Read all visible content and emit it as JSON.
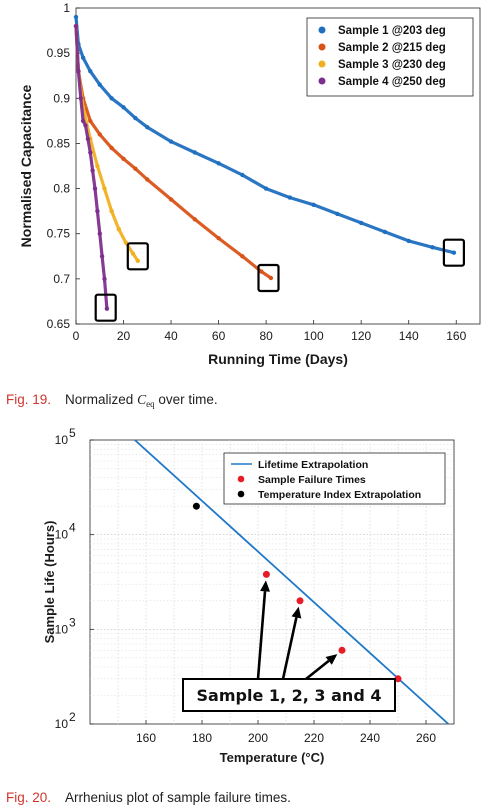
{
  "figure1": {
    "caption_label": "Fig. 19.",
    "caption_pre": "Normalized ",
    "caption_sym": "C",
    "caption_sub": "eq",
    "caption_post": " over time."
  },
  "figure2": {
    "caption_label": "Fig. 20.",
    "caption_text": "Arrhenius plot of sample failure times."
  },
  "chart_data": [
    {
      "type": "scatter",
      "xlabel": "Running Time (Days)",
      "ylabel": "Normalised Capacitance",
      "xlim": [
        0,
        170
      ],
      "ylim": [
        0.65,
        1
      ],
      "xticks": [
        0,
        20,
        40,
        60,
        80,
        100,
        120,
        140,
        160
      ],
      "yticks": [
        0.65,
        0.7,
        0.75,
        0.8,
        0.85,
        0.9,
        0.95,
        1
      ],
      "legend_position": "top-right",
      "grid": false,
      "colors": [
        "#1f6fc0",
        "#d95319",
        "#f0b020",
        "#7e2f8e"
      ],
      "series": [
        {
          "name": "Sample 1 @203 deg",
          "x": [
            0,
            1,
            3,
            6,
            10,
            15,
            20,
            25,
            30,
            40,
            50,
            60,
            70,
            80,
            90,
            100,
            110,
            120,
            130,
            140,
            150,
            159
          ],
          "values": [
            0.99,
            0.96,
            0.945,
            0.93,
            0.915,
            0.9,
            0.89,
            0.878,
            0.868,
            0.852,
            0.84,
            0.828,
            0.815,
            0.8,
            0.79,
            0.782,
            0.772,
            0.762,
            0.752,
            0.742,
            0.735,
            0.729
          ]
        },
        {
          "name": "Sample 2 @215 deg",
          "x": [
            0,
            1,
            3,
            6,
            10,
            15,
            20,
            25,
            30,
            40,
            50,
            60,
            70,
            78,
            82
          ],
          "values": [
            0.98,
            0.93,
            0.9,
            0.875,
            0.86,
            0.845,
            0.833,
            0.822,
            0.81,
            0.788,
            0.766,
            0.745,
            0.725,
            0.708,
            0.701
          ]
        },
        {
          "name": "Sample 3 @230 deg",
          "x": [
            0,
            1,
            3,
            6,
            9,
            12,
            15,
            18,
            21,
            24,
            26
          ],
          "values": [
            0.98,
            0.93,
            0.89,
            0.855,
            0.825,
            0.8,
            0.775,
            0.755,
            0.74,
            0.728,
            0.72
          ]
        },
        {
          "name": "Sample 4 @250 deg",
          "x": [
            0,
            1,
            2,
            3,
            4,
            5,
            6,
            7,
            8,
            9,
            10,
            11,
            12,
            13
          ],
          "values": [
            0.98,
            0.93,
            0.9,
            0.875,
            0.87,
            0.855,
            0.84,
            0.82,
            0.8,
            0.775,
            0.75,
            0.725,
            0.7,
            0.667
          ]
        }
      ],
      "failure_boxes": [
        {
          "x": 26,
          "y": 0.725
        },
        {
          "x": 81,
          "y": 0.701
        },
        {
          "x": 159,
          "y": 0.729
        },
        {
          "x": 12.5,
          "y": 0.668
        }
      ]
    },
    {
      "type": "scatter",
      "xlabel": "Temperature (°C)",
      "ylabel": "Sample Life (Hours)",
      "xlim": [
        140,
        270
      ],
      "ylim": [
        100,
        100000
      ],
      "yscale": "log",
      "xticks": [
        160,
        180,
        200,
        220,
        240,
        260
      ],
      "yticks": [
        {
          "value": 100,
          "base": "10",
          "exp": "2"
        },
        {
          "value": 1000,
          "base": "10",
          "exp": "3"
        },
        {
          "value": 10000,
          "base": "10",
          "exp": "4"
        },
        {
          "value": 100000,
          "base": "10",
          "exp": "5"
        }
      ],
      "legend_position": "top-right",
      "grid": true,
      "colors": {
        "line": "#1f78c8",
        "failure": "#e81c24",
        "index": "#000000"
      },
      "series": [
        {
          "name": "Lifetime Extrapolation",
          "kind": "line",
          "x": [
            156,
            268
          ],
          "values": [
            100000,
            100
          ]
        },
        {
          "name": "Sample Failure Times",
          "kind": "points",
          "x": [
            203,
            215,
            230,
            250
          ],
          "values": [
            3800,
            2000,
            600,
            300
          ]
        },
        {
          "name": "Temperature Index Extrapolation",
          "kind": "points",
          "x": [
            178
          ],
          "values": [
            20000
          ]
        }
      ],
      "annotation": "Sample 1, 2, 3 and 4"
    }
  ]
}
